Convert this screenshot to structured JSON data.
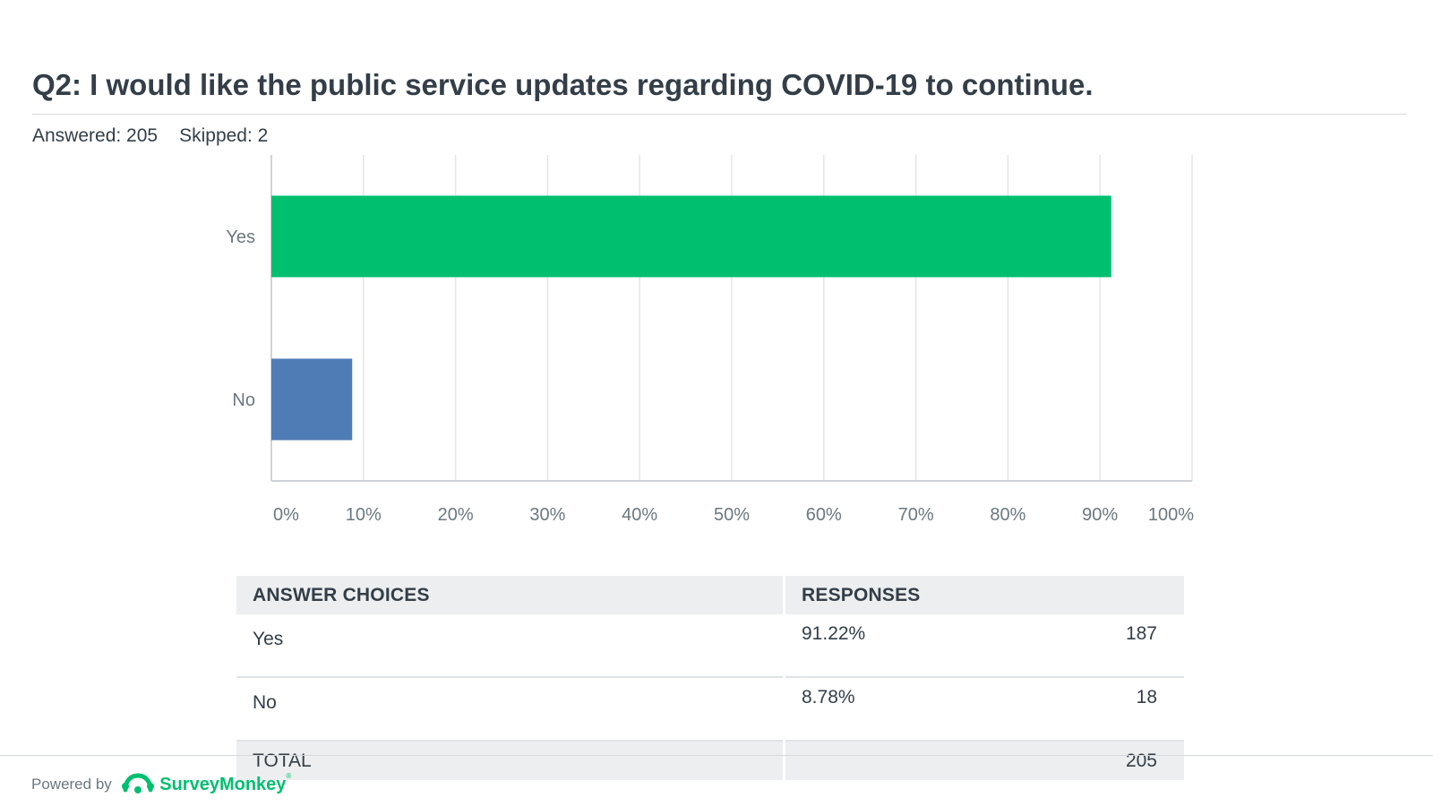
{
  "question": {
    "title": "Q2: I would like the public service updates regarding COVID-19 to continue.",
    "answered": "Answered: 205",
    "skipped": "Skipped: 2"
  },
  "chart_data": {
    "type": "bar",
    "orientation": "horizontal",
    "categories": [
      "Yes",
      "No"
    ],
    "values": [
      91.22,
      8.78
    ],
    "colors": [
      "#00bf6f",
      "#507cb6"
    ],
    "x_ticks": [
      "0%",
      "10%",
      "20%",
      "30%",
      "40%",
      "50%",
      "60%",
      "70%",
      "80%",
      "90%",
      "100%"
    ],
    "xlim": [
      0,
      100
    ],
    "grid": true
  },
  "table": {
    "headers": [
      "ANSWER CHOICES",
      "RESPONSES"
    ],
    "rows": [
      {
        "choice": "Yes",
        "percent": "91.22%",
        "count": "187"
      },
      {
        "choice": "No",
        "percent": "8.78%",
        "count": "18"
      }
    ],
    "total_label": "TOTAL",
    "total_value": "205"
  },
  "footer": {
    "powered_by": "Powered by",
    "brand": "SurveyMonkey",
    "brand_mark": "®",
    "logo_icon": "surveymonkey-logo-icon"
  }
}
